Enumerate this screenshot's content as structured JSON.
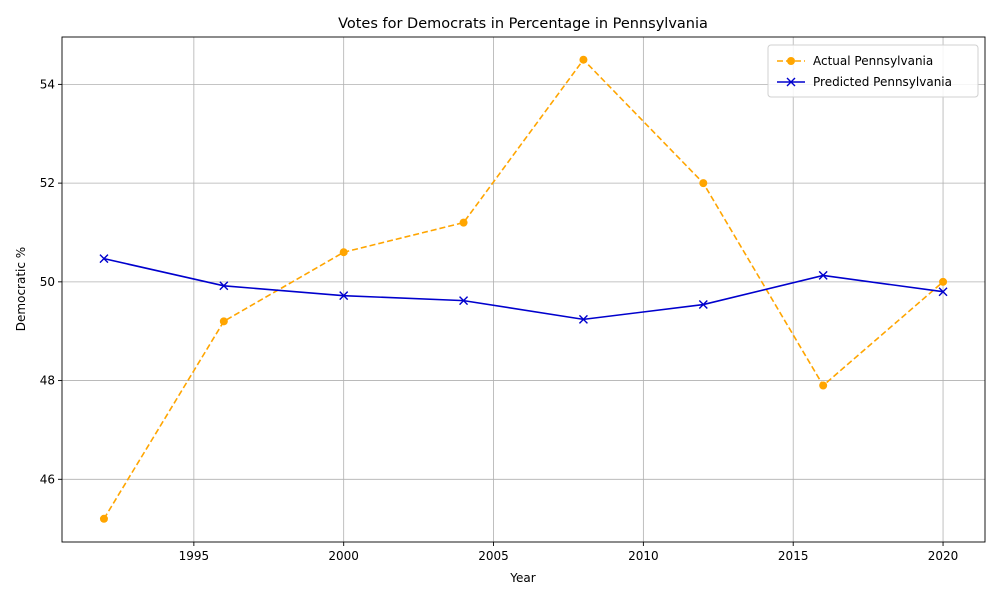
{
  "chart_data": {
    "type": "line",
    "title": "Votes for Democrats in Percentage in Pennsylvania",
    "xlabel": "Year",
    "ylabel": "Democratic %",
    "xlim": [
      1990.6,
      2021.4
    ],
    "ylim": [
      44.73,
      54.96
    ],
    "x_ticks": [
      1995,
      2000,
      2005,
      2010,
      2015,
      2020
    ],
    "y_ticks": [
      46,
      48,
      50,
      52,
      54
    ],
    "grid": true,
    "legend_position": "top-right",
    "series": [
      {
        "name": "Actual Pennsylvania",
        "color": "#ffa500",
        "line_style": "dashed",
        "marker": "circle",
        "x": [
          1992,
          1996,
          2000,
          2004,
          2008,
          2012,
          2016,
          2020
        ],
        "y": [
          45.2,
          49.2,
          50.6,
          51.2,
          54.5,
          52.0,
          47.9,
          50.0
        ]
      },
      {
        "name": "Predicted Pennsylvania",
        "color": "#0000cd",
        "line_style": "solid",
        "marker": "x",
        "x": [
          1992,
          1996,
          2000,
          2004,
          2008,
          2012,
          2016,
          2020
        ],
        "y": [
          50.47,
          49.92,
          49.72,
          49.62,
          49.24,
          49.54,
          50.13,
          49.8
        ]
      }
    ]
  }
}
